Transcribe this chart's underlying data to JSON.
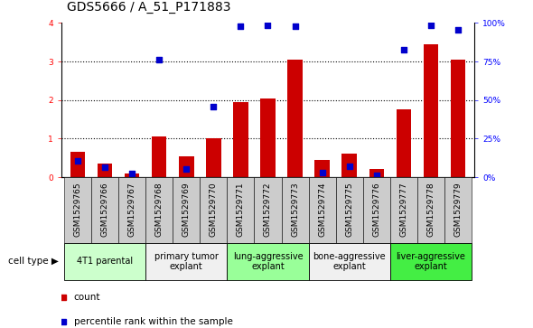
{
  "title": "GDS5666 / A_51_P171883",
  "samples": [
    "GSM1529765",
    "GSM1529766",
    "GSM1529767",
    "GSM1529768",
    "GSM1529769",
    "GSM1529770",
    "GSM1529771",
    "GSM1529772",
    "GSM1529773",
    "GSM1529774",
    "GSM1529775",
    "GSM1529776",
    "GSM1529777",
    "GSM1529778",
    "GSM1529779"
  ],
  "bar_values": [
    0.65,
    0.35,
    0.1,
    1.05,
    0.55,
    1.0,
    1.95,
    2.05,
    3.05,
    0.45,
    0.6,
    0.2,
    1.75,
    3.45,
    3.05
  ],
  "dot_values": [
    0.42,
    0.25,
    0.1,
    3.05,
    0.22,
    1.82,
    3.92,
    3.95,
    3.92,
    0.12,
    0.28,
    0.05,
    3.3,
    3.93,
    3.82
  ],
  "bar_color": "#cc0000",
  "dot_color": "#0000cc",
  "ylim": [
    0,
    4
  ],
  "yticks": [
    0,
    1,
    2,
    3,
    4
  ],
  "right_ytick_labels": [
    "0%",
    "25%",
    "50%",
    "75%",
    "100%"
  ],
  "cell_type_groups": [
    {
      "label": "4T1 parental",
      "start": 0,
      "end": 2,
      "color": "#ccffcc"
    },
    {
      "label": "primary tumor\nexplant",
      "start": 3,
      "end": 5,
      "color": "#f0f0f0"
    },
    {
      "label": "lung-aggressive\nexplant",
      "start": 6,
      "end": 8,
      "color": "#99ff99"
    },
    {
      "label": "bone-aggressive\nexplant",
      "start": 9,
      "end": 11,
      "color": "#f0f0f0"
    },
    {
      "label": "liver-aggressive\nexplant",
      "start": 12,
      "end": 14,
      "color": "#44ee44"
    }
  ],
  "cell_type_label": "cell type",
  "legend_count_label": "count",
  "legend_percentile_label": "percentile rank within the sample",
  "sample_bg_color": "#cccccc",
  "plot_bg": "#ffffff",
  "title_fontsize": 10,
  "tick_fontsize": 6.5,
  "group_fontsize": 7,
  "legend_fontsize": 7.5
}
